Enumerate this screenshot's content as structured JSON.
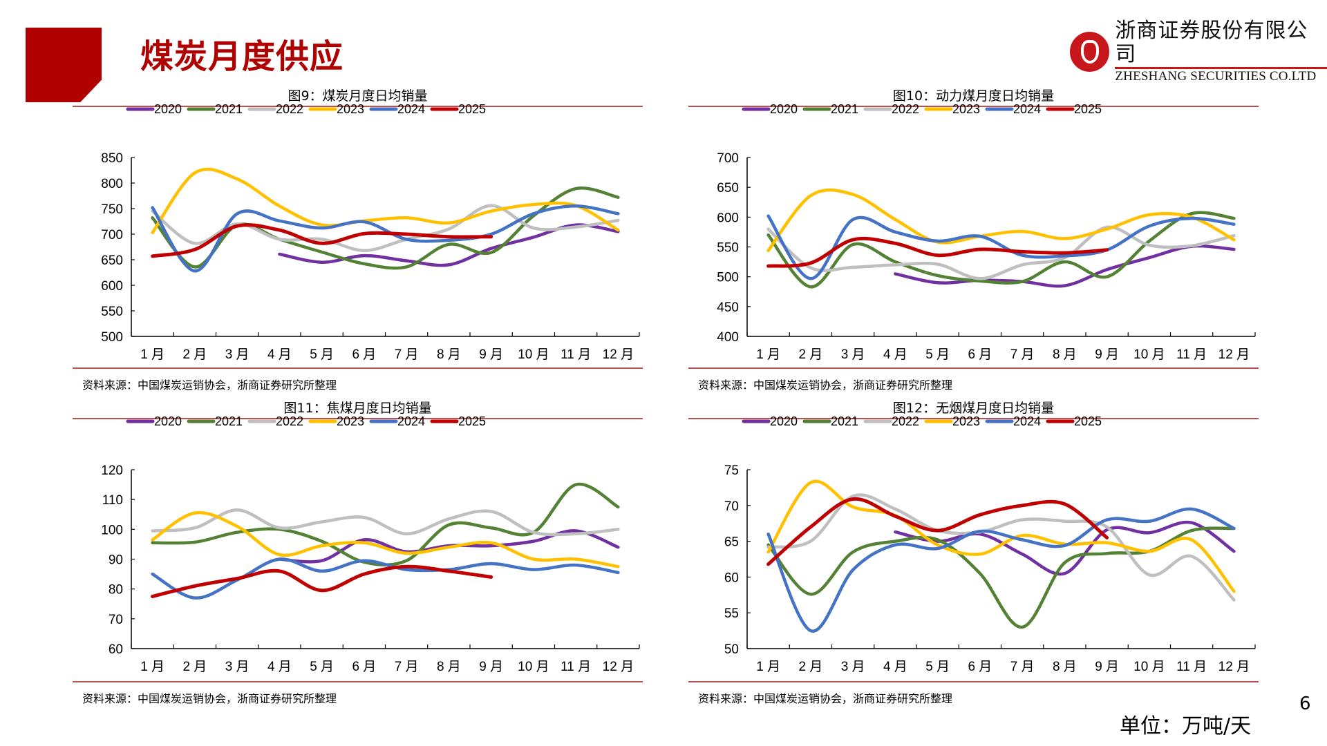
{
  "page": {
    "title": "煤炭月度供应",
    "unit": "单位：万吨/天",
    "page_number": "6",
    "brand_color": "#b00000"
  },
  "logo": {
    "name_cn": "浙商证券股份有限公司",
    "name_en": "ZHESHANG SECURITIES CO.LTD",
    "icon": "zheshang-logo-icon"
  },
  "series_colors": {
    "2020": "#7030a0",
    "2021": "#548235",
    "2022": "#bfbfbf",
    "2023": "#ffc000",
    "2024": "#4472c4",
    "2025": "#c00000"
  },
  "chart_data": [
    {
      "id": "fig9",
      "type": "line",
      "title": "图9：煤炭月度日均销量",
      "source": "资料来源：中国煤炭运销协会，浙商证券研究所整理",
      "categories": [
        "1 月",
        "2 月",
        "3 月",
        "4 月",
        "5 月",
        "6 月",
        "7 月",
        "8 月",
        "9 月",
        "10 月",
        "11 月",
        "12 月"
      ],
      "ylim": [
        500,
        850
      ],
      "yticks": [
        500,
        550,
        600,
        650,
        700,
        750,
        800,
        850
      ],
      "legend": "top",
      "series": [
        {
          "name": "2020",
          "values": [
            null,
            null,
            null,
            661,
            645,
            658,
            648,
            640,
            672,
            694,
            718,
            705
          ]
        },
        {
          "name": "2021",
          "values": [
            732,
            636,
            718,
            690,
            665,
            642,
            636,
            680,
            664,
            736,
            789,
            772
          ]
        },
        {
          "name": "2022",
          "values": [
            745,
            682,
            720,
            690,
            690,
            668,
            690,
            710,
            756,
            712,
            714,
            727
          ]
        },
        {
          "name": "2023",
          "values": [
            703,
            820,
            808,
            755,
            718,
            726,
            732,
            722,
            745,
            758,
            756,
            708
          ]
        },
        {
          "name": "2024",
          "values": [
            752,
            628,
            740,
            726,
            712,
            724,
            690,
            688,
            700,
            740,
            755,
            740
          ]
        },
        {
          "name": "2025",
          "values": [
            657,
            670,
            716,
            708,
            682,
            701,
            700,
            695,
            695,
            null,
            null,
            null
          ]
        }
      ]
    },
    {
      "id": "fig10",
      "type": "line",
      "title": "图10：动力煤月度日均销量",
      "source": "资料来源：中国煤炭运销协会，浙商证券研究所整理",
      "categories": [
        "1 月",
        "2 月",
        "3 月",
        "4 月",
        "5 月",
        "6 月",
        "7 月",
        "8 月",
        "9 月",
        "10 月",
        "11 月",
        "12 月"
      ],
      "ylim": [
        400,
        700
      ],
      "yticks": [
        400,
        450,
        500,
        550,
        600,
        650,
        700
      ],
      "legend": "top",
      "series": [
        {
          "name": "2020",
          "values": [
            null,
            null,
            null,
            505,
            490,
            494,
            492,
            485,
            512,
            532,
            551,
            546
          ]
        },
        {
          "name": "2021",
          "values": [
            570,
            483,
            554,
            525,
            502,
            493,
            492,
            525,
            500,
            560,
            606,
            598
          ]
        },
        {
          "name": "2022",
          "values": [
            580,
            515,
            516,
            520,
            521,
            497,
            520,
            532,
            583,
            553,
            552,
            569
          ]
        },
        {
          "name": "2023",
          "values": [
            544,
            636,
            638,
            596,
            558,
            568,
            576,
            564,
            580,
            604,
            600,
            562
          ]
        },
        {
          "name": "2024",
          "values": [
            602,
            497,
            596,
            575,
            560,
            568,
            536,
            535,
            545,
            585,
            598,
            588
          ]
        },
        {
          "name": "2025",
          "values": [
            518,
            523,
            562,
            556,
            536,
            546,
            542,
            540,
            545,
            null,
            null,
            null
          ]
        }
      ]
    },
    {
      "id": "fig11",
      "type": "line",
      "title": "图11：焦煤月度日均销量",
      "source": "资料来源：中国煤炭运销协会，浙商证券研究所整理",
      "categories": [
        "1 月",
        "2 月",
        "3 月",
        "4 月",
        "5 月",
        "6 月",
        "7 月",
        "8 月",
        "9 月",
        "10 月",
        "11 月",
        "12 月"
      ],
      "ylim": [
        60,
        120
      ],
      "yticks": [
        60,
        70,
        80,
        90,
        100,
        110,
        120
      ],
      "legend": "top",
      "series": [
        {
          "name": "2020",
          "values": [
            null,
            null,
            null,
            90,
            89.5,
            96.5,
            92.5,
            94.5,
            94.5,
            96,
            99.5,
            94
          ]
        },
        {
          "name": "2021",
          "values": [
            95.5,
            95.7,
            99,
            100,
            96,
            89,
            89.5,
            101.5,
            100.5,
            99,
            115,
            107.5
          ]
        },
        {
          "name": "2022",
          "values": [
            99.5,
            100.5,
            106.5,
            100.5,
            102.5,
            104,
            98.5,
            103.5,
            106,
            99,
            98.5,
            100
          ]
        },
        {
          "name": "2023",
          "values": [
            96.5,
            105.5,
            101,
            91.5,
            94.5,
            95.5,
            92,
            94,
            95.5,
            90,
            90,
            87.5
          ]
        },
        {
          "name": "2024",
          "values": [
            85,
            77,
            83,
            90,
            86,
            89.5,
            86.5,
            86.5,
            88.5,
            86.5,
            88,
            85.5
          ]
        },
        {
          "name": "2025",
          "values": [
            77.5,
            81,
            83.5,
            86,
            79.5,
            85,
            87.5,
            86,
            84,
            null,
            null,
            null
          ]
        }
      ]
    },
    {
      "id": "fig12",
      "type": "line",
      "title": "图12：无烟煤月度日均销量",
      "source": "资料来源：中国煤炭运销协会，浙商证券研究所整理",
      "categories": [
        "1 月",
        "2 月",
        "3 月",
        "4 月",
        "5 月",
        "6 月",
        "7 月",
        "8 月",
        "9 月",
        "10 月",
        "11 月",
        "12 月"
      ],
      "ylim": [
        50,
        75
      ],
      "yticks": [
        50,
        55,
        60,
        65,
        70,
        75
      ],
      "legend": "top",
      "series": [
        {
          "name": "2020",
          "values": [
            null,
            null,
            null,
            66.3,
            65,
            66,
            63.2,
            60.5,
            66.6,
            66.2,
            67.6,
            63.6
          ]
        },
        {
          "name": "2021",
          "values": [
            64.5,
            57.6,
            63.5,
            65,
            65.2,
            60.5,
            53,
            62,
            63.3,
            63.6,
            66.5,
            66.8
          ]
        },
        {
          "name": "2022",
          "values": [
            64.2,
            65,
            71.3,
            69.5,
            66.5,
            66.3,
            68,
            67.8,
            67,
            60.3,
            62.9,
            56.8
          ]
        },
        {
          "name": "2023",
          "values": [
            63.5,
            73.2,
            69.8,
            68.6,
            64.5,
            63.2,
            65.8,
            64.6,
            64.8,
            63.6,
            65.2,
            58
          ]
        },
        {
          "name": "2024",
          "values": [
            66,
            52.5,
            61,
            64.5,
            64,
            66.4,
            65.2,
            64.4,
            68,
            67.8,
            69.5,
            66.8
          ]
        },
        {
          "name": "2025",
          "values": [
            61.8,
            67,
            70.9,
            68.5,
            66.5,
            68.7,
            70,
            70.2,
            65.5,
            null,
            null,
            null
          ]
        }
      ]
    }
  ]
}
